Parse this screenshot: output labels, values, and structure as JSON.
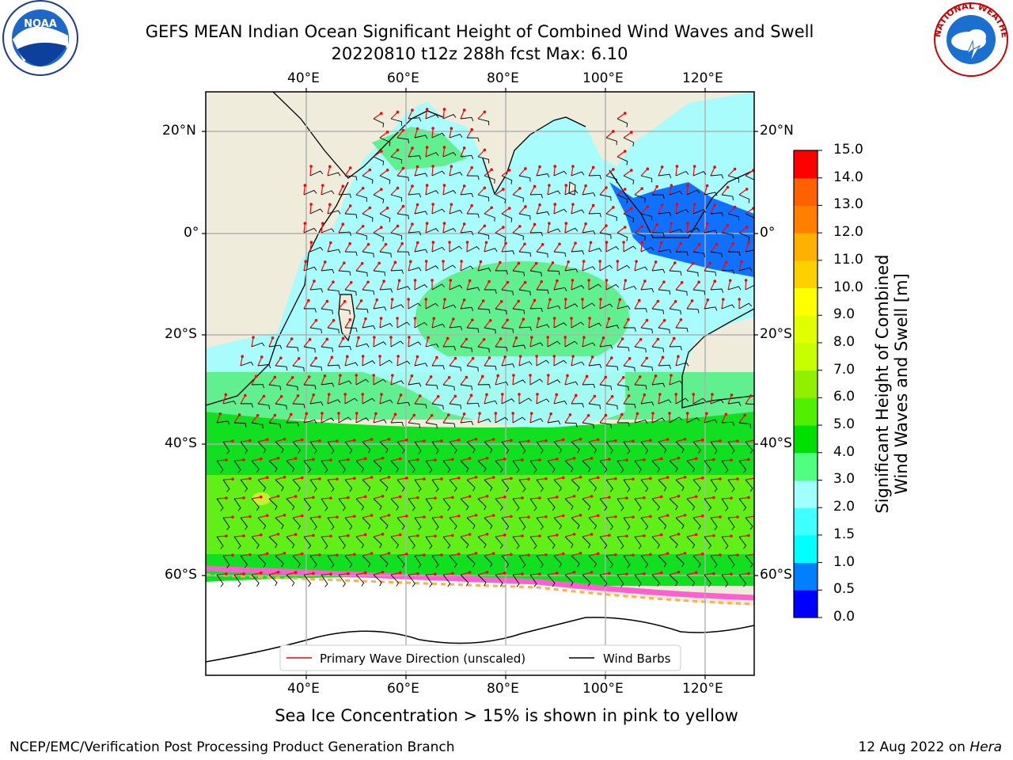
{
  "title": {
    "line1": "GEFS MEAN Indian Ocean Significant Height of Combined Wind Waves and Swell",
    "line2": "20220810 t12z 288h fcst   Max: 6.10"
  },
  "logos": {
    "left": "NOAA",
    "left_ring": "NATIONAL OCEANIC AND ATMOSPHERIC ADMINISTRATION · U.S. DEPARTMENT OF COMMERCE",
    "right_ring": "NATIONAL WEATHER SERVICE"
  },
  "map": {
    "lon_ticks_top": [
      "40°E",
      "60°E",
      "80°E",
      "100°E",
      "120°E"
    ],
    "lon_ticks_bottom": [
      "40°E",
      "60°E",
      "80°E",
      "100°E",
      "120°E"
    ],
    "lat_ticks_left": [
      "20°N",
      "0°",
      "20°S",
      "40°S",
      "60°S"
    ],
    "lat_ticks_right": [
      "20°N",
      "0°",
      "20°S",
      "40°S",
      "60°S"
    ],
    "lon_range": [
      20,
      130
    ],
    "lat_range": [
      -70,
      28
    ],
    "legend": {
      "wave_label": "Primary Wave Direction (unscaled)",
      "wind_label": "Wind Barbs",
      "wave_color": "#ff0000",
      "wind_color": "#000000"
    }
  },
  "colorbar": {
    "label_line1": "Significant Height of Combined",
    "label_line2": "Wind Waves and Swell [m]",
    "ticks": [
      "0.0",
      "0.5",
      "1.0",
      "1.5",
      "2.0",
      "3.0",
      "4.0",
      "5.0",
      "6.0",
      "7.0",
      "8.0",
      "9.0",
      "10.0",
      "11.0",
      "12.0",
      "13.0",
      "14.0",
      "15.0"
    ],
    "colors": [
      "#0000ff",
      "#0080ff",
      "#00ffff",
      "#40ffff",
      "#a0ffff",
      "#50ff80",
      "#00e000",
      "#50f000",
      "#90f000",
      "#c8ff00",
      "#e0ff00",
      "#ffff00",
      "#ffd000",
      "#ffb000",
      "#ff8000",
      "#ff6000",
      "#ff0000"
    ]
  },
  "note": "Sea Ice Concentration > 15% is shown in pink to yellow",
  "footer": {
    "left": "NCEP/EMC/Verification Post Processing Product Generation Branch",
    "right_date": "12 Aug 2022 on ",
    "right_host": "Hera"
  }
}
